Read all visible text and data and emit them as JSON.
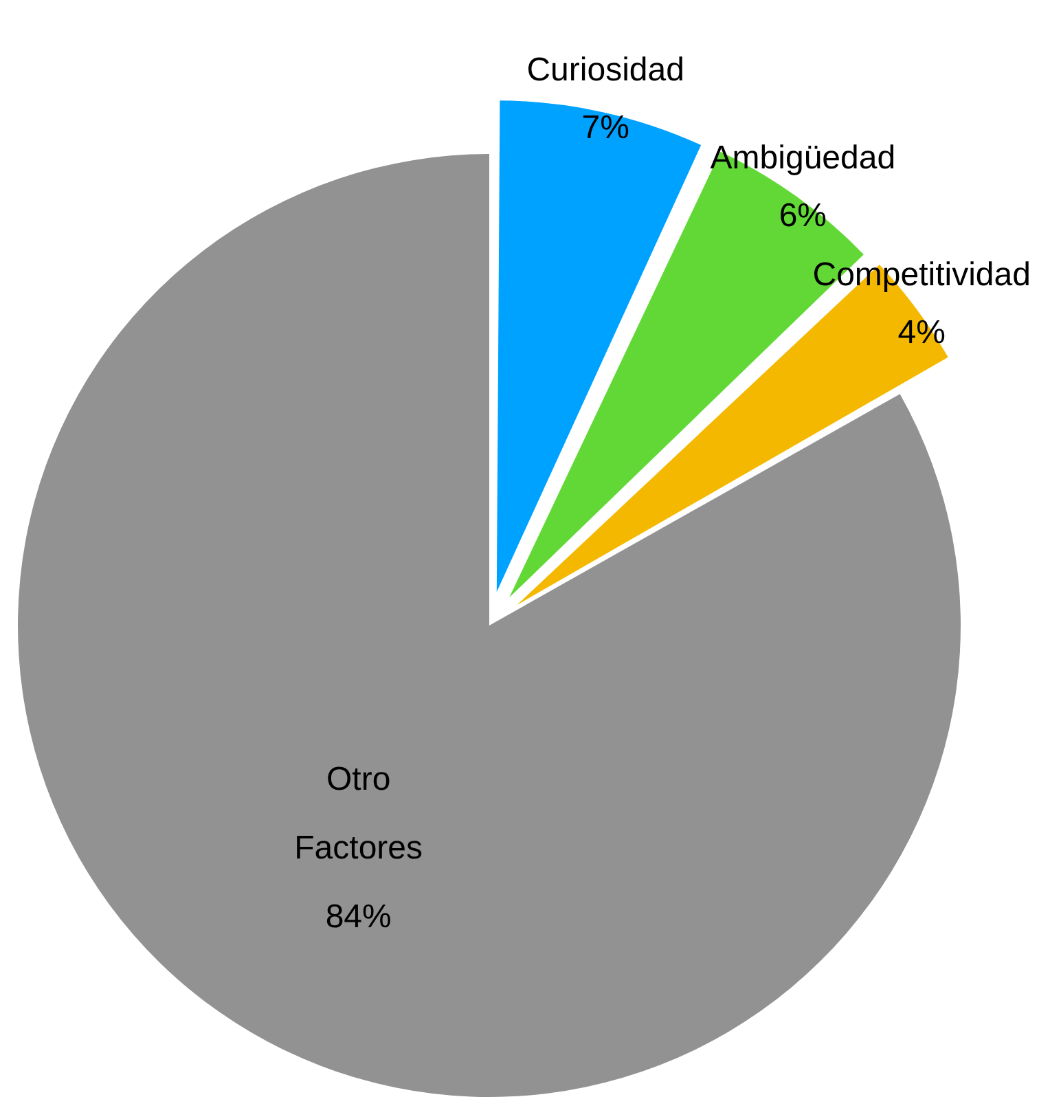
{
  "chart_data": {
    "type": "pie",
    "categories": [
      "Curiosidad",
      "Ambigüedad",
      "Competitividad",
      "Otro Factores"
    ],
    "values": [
      7,
      6,
      4,
      84
    ],
    "colors": [
      "#00a2ff",
      "#61d836",
      "#f5b800",
      "#929292"
    ],
    "value_labels": [
      "7%",
      "6%",
      "4%",
      "84%"
    ]
  }
}
